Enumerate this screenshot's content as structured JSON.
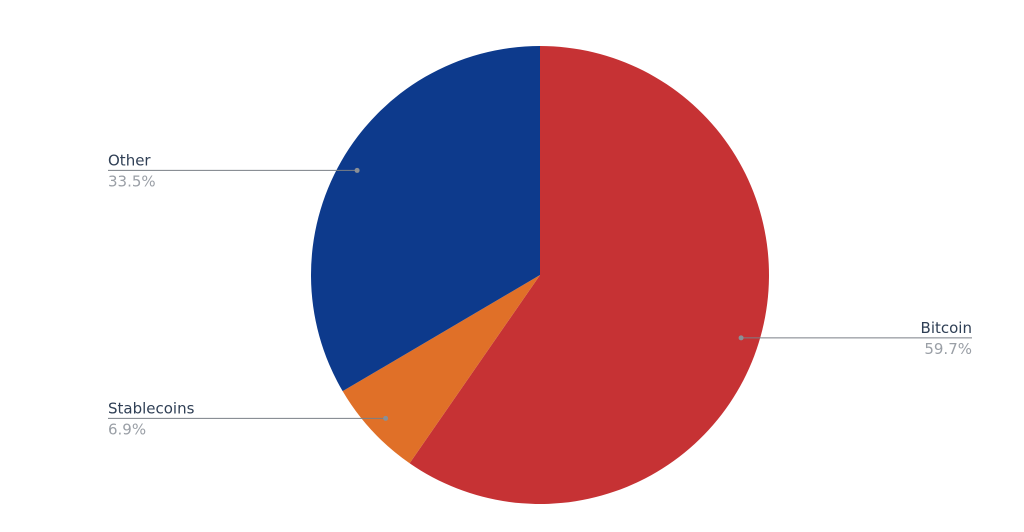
{
  "chart_data": {
    "type": "pie",
    "title": "",
    "start_angle_deg": 0,
    "direction": "clockwise",
    "slices": [
      {
        "name": "Bitcoin",
        "value": 59.7,
        "label": "59.7%",
        "color": "#c63234",
        "label_side": "right"
      },
      {
        "name": "Stablecoins",
        "value": 6.9,
        "label": "6.9%",
        "color": "#e07028",
        "label_side": "left"
      },
      {
        "name": "Other",
        "value": 33.5,
        "label": "33.5%",
        "color": "#0d3a8c",
        "label_side": "left"
      }
    ]
  }
}
